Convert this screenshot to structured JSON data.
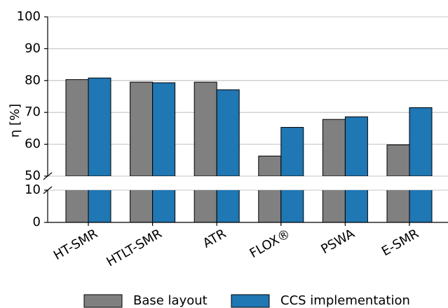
{
  "chart_data": {
    "type": "bar",
    "ylabel": "η [%]",
    "categories": [
      "HT-SMR",
      "HTLT-SMR",
      "ATR",
      "FLOX®",
      "PSWA",
      "E-SMR"
    ],
    "series": [
      {
        "name": "Base layout",
        "color": "#808080",
        "values": [
          80.3,
          79.5,
          79.5,
          56.3,
          67.8,
          59.8
        ]
      },
      {
        "name": "CCS implementation",
        "color": "#1f77b4",
        "values": [
          80.8,
          79.3,
          77.1,
          65.3,
          68.6,
          71.5
        ]
      }
    ],
    "ylim": [
      50,
      100
    ],
    "yticks": [
      50,
      60,
      70,
      80,
      90,
      100
    ],
    "ylim_lower": [
      0,
      10
    ],
    "yticks_lower": [
      0,
      10
    ],
    "grid": true,
    "legend": "bottom"
  }
}
